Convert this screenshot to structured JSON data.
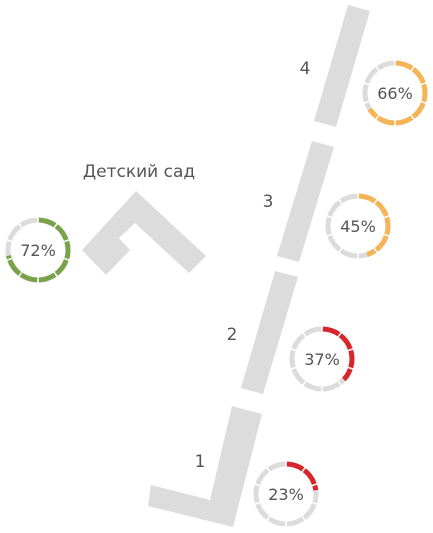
{
  "colors": {
    "building": "#dcdcdc",
    "ring_track": "#dcdcdc",
    "text": "#555555",
    "high": "#7aa24a",
    "medium": "#f5b455",
    "low": "#d9262b"
  },
  "kindergarten": {
    "label": "Детский сад",
    "percent": 72,
    "percent_label": "72%",
    "color": "#7aa24a"
  },
  "buildings": [
    {
      "number": "1",
      "percent": 23,
      "percent_label": "23%",
      "color": "#d9262b"
    },
    {
      "number": "2",
      "percent": 37,
      "percent_label": "37%",
      "color": "#d9262b"
    },
    {
      "number": "3",
      "percent": 45,
      "percent_label": "45%",
      "color": "#f5b455"
    },
    {
      "number": "4",
      "percent": 66,
      "percent_label": "66%",
      "color": "#f5b455"
    }
  ]
}
